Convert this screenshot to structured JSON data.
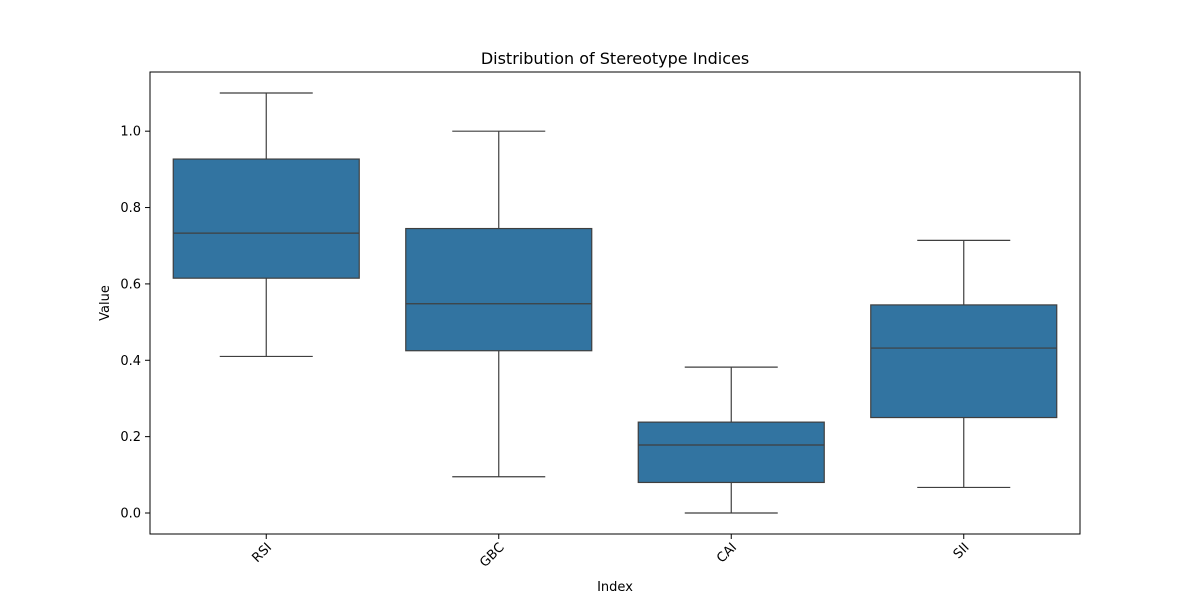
{
  "chart_data": {
    "type": "box",
    "title": "Distribution of Stereotype Indices",
    "xlabel": "Index",
    "ylabel": "Value",
    "categories": [
      "RSI",
      "GBC",
      "CAI",
      "SII"
    ],
    "boxes": [
      {
        "category": "RSI",
        "whisker_low": 0.41,
        "q1": 0.615,
        "median": 0.733,
        "q3": 0.927,
        "whisker_high": 1.1
      },
      {
        "category": "GBC",
        "whisker_low": 0.095,
        "q1": 0.425,
        "median": 0.548,
        "q3": 0.745,
        "whisker_high": 1.0
      },
      {
        "category": "CAI",
        "whisker_low": 0.0,
        "q1": 0.08,
        "median": 0.178,
        "q3": 0.238,
        "whisker_high": 0.382
      },
      {
        "category": "SII",
        "whisker_low": 0.067,
        "q1": 0.25,
        "median": 0.432,
        "q3": 0.545,
        "whisker_high": 0.714
      }
    ],
    "ylim": [
      -0.055,
      1.155
    ],
    "yticks": [
      0.0,
      0.2,
      0.4,
      0.6,
      0.8,
      1.0
    ],
    "ytick_labels": [
      "0.0",
      "0.2",
      "0.4",
      "0.6",
      "0.8",
      "1.0"
    ],
    "xtick_rotation": 45,
    "grid": false,
    "colors": {
      "box_fill": "#3274a1",
      "box_edge": "#3f3f3f",
      "axis": "#000000"
    }
  }
}
